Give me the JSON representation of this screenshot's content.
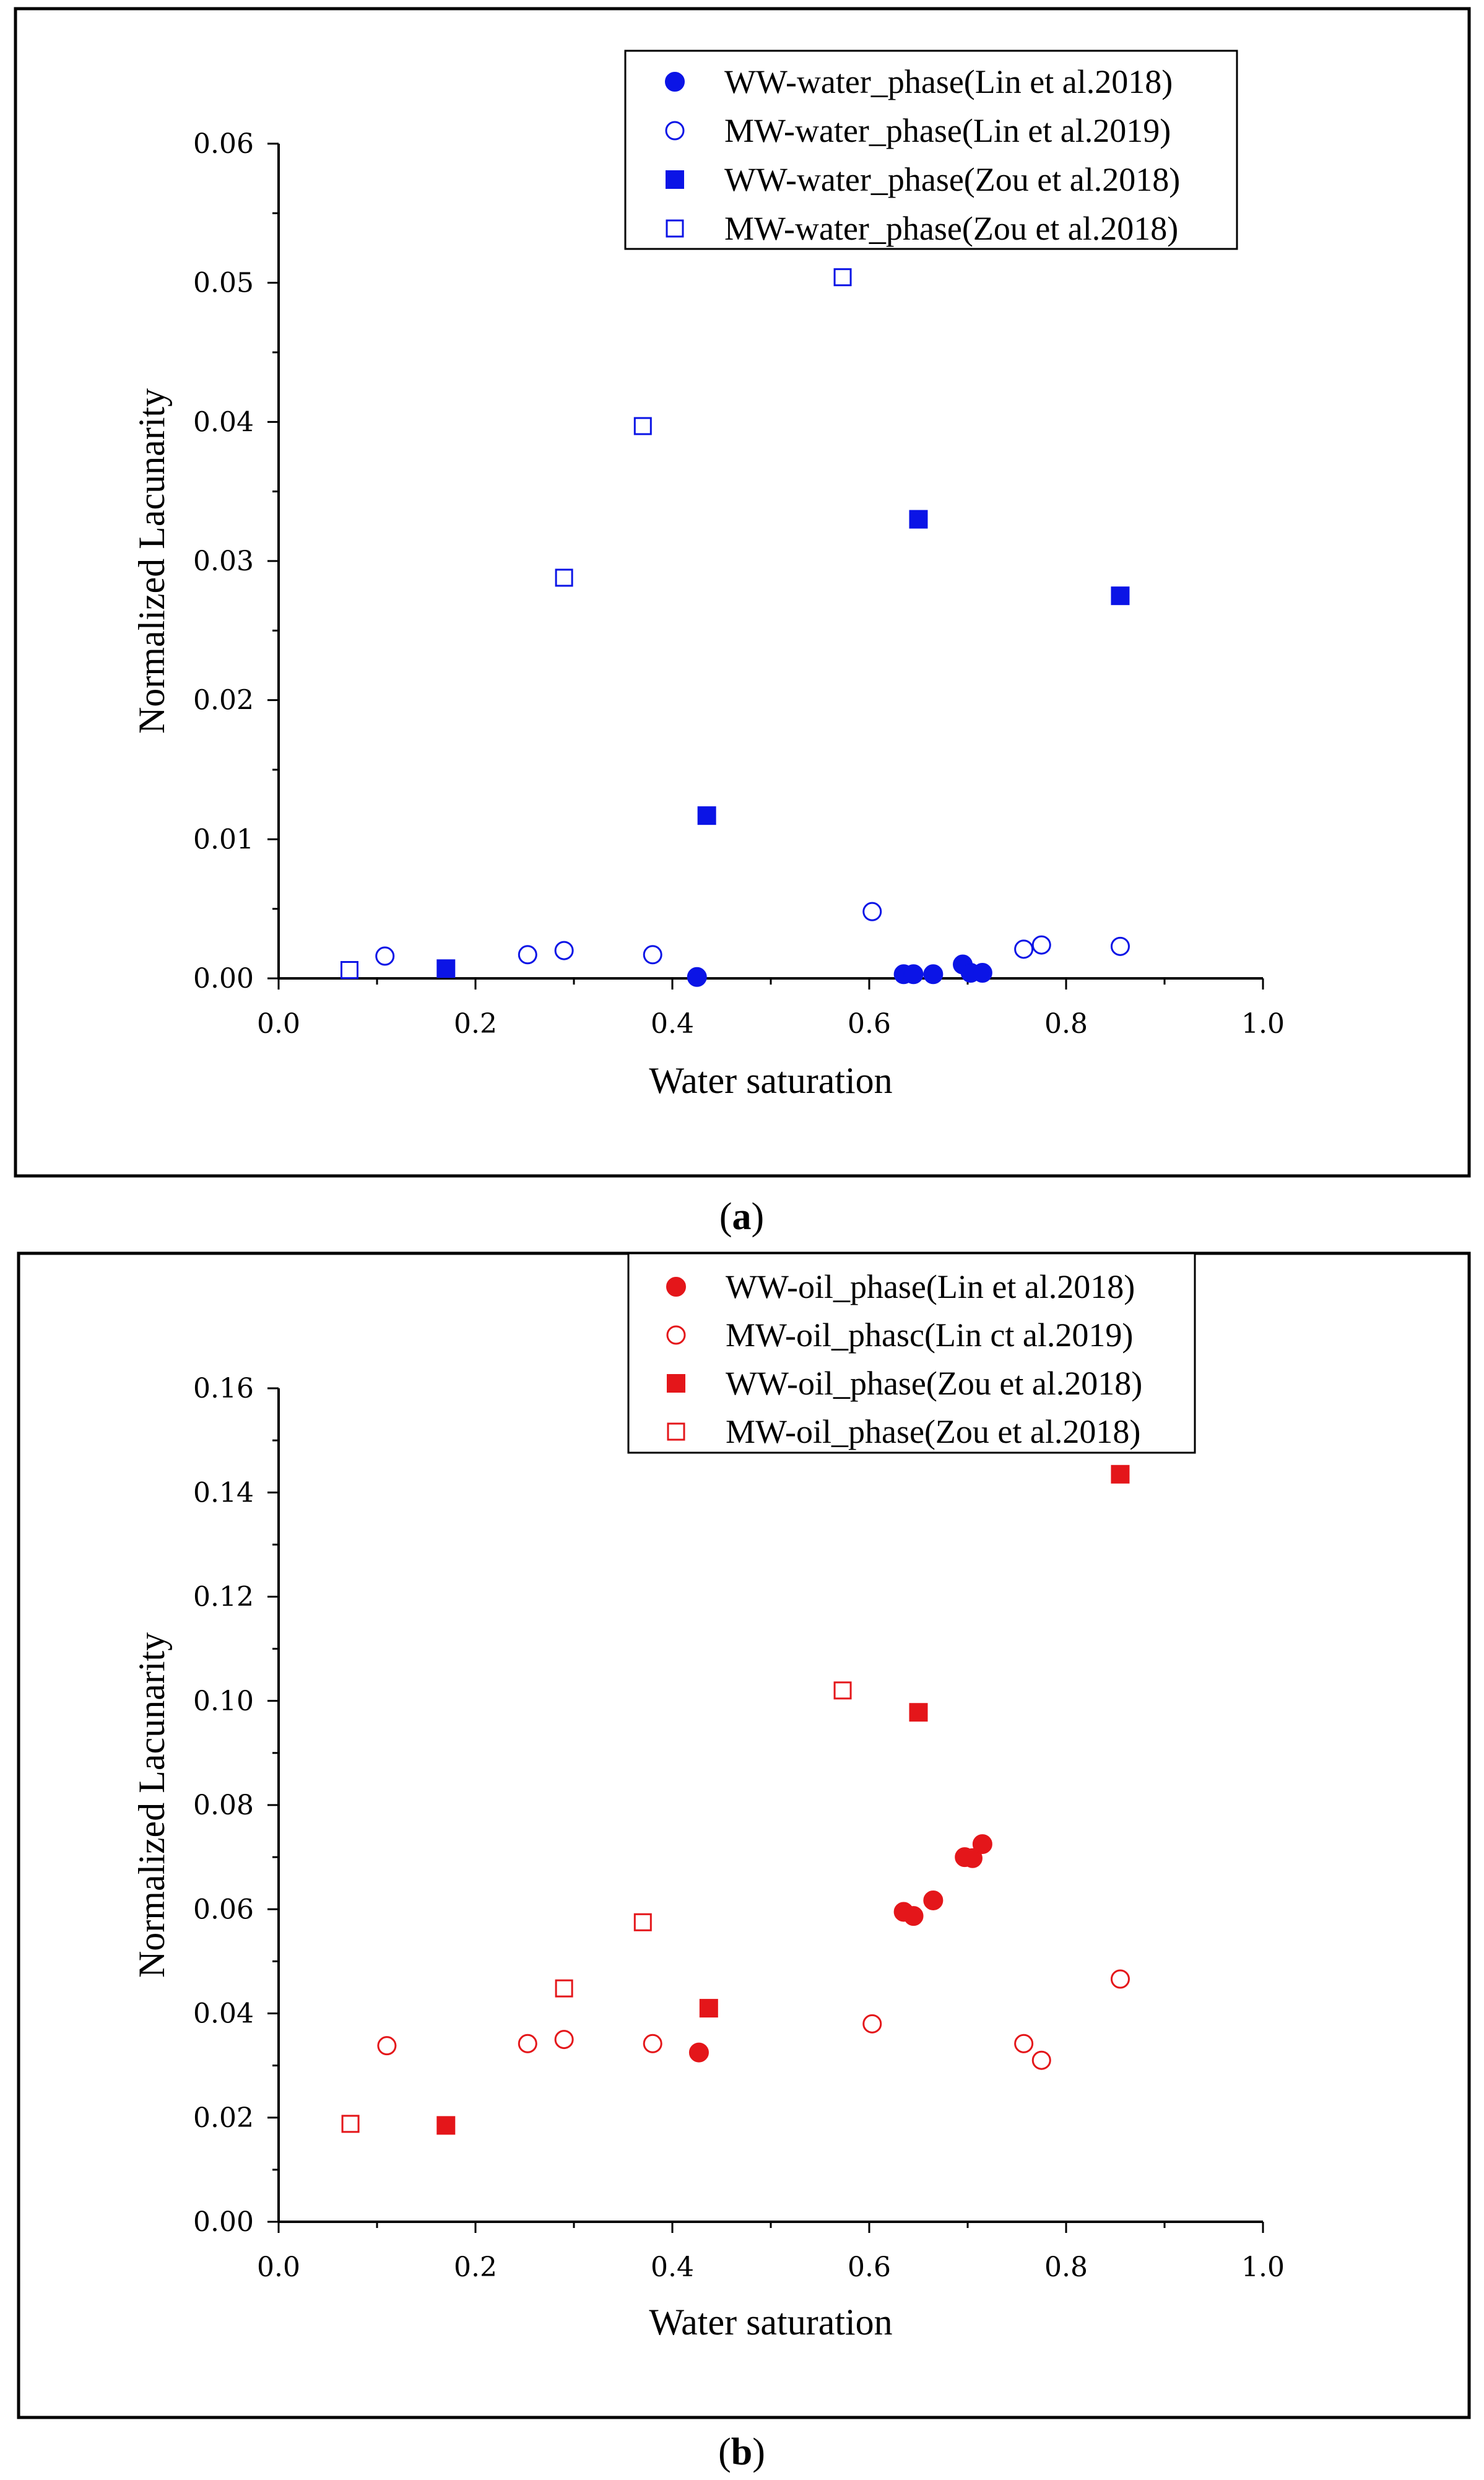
{
  "chart_data": [
    {
      "type": "scatter",
      "panel": "a",
      "caption": {
        "open": "(",
        "letter": "a",
        "close": ")"
      },
      "xlabel": "Water saturation",
      "ylabel": "Normalized Lacunarity",
      "xlim": [
        0,
        1.0
      ],
      "ylim": [
        0,
        0.06
      ],
      "x_ticks": [
        0.0,
        0.2,
        0.4,
        0.6,
        0.8,
        1.0
      ],
      "x_tick_labels": [
        "0.0",
        "0.2",
        "0.4",
        "0.6",
        "0.8",
        "1.0"
      ],
      "y_ticks": [
        0.0,
        0.01,
        0.02,
        0.03,
        0.04,
        0.05,
        0.06
      ],
      "y_tick_labels": [
        "0.00",
        "0.01",
        "0.02",
        "0.03",
        "0.04",
        "0.05",
        "0.06"
      ],
      "legend_position": "top-right",
      "color": "#0b14e6",
      "series": [
        {
          "name": "WW-water_phase(Lin et al.2018)",
          "marker": "circle-filled",
          "points": [
            [
              0.425,
              0.0001
            ],
            [
              0.635,
              0.0003
            ],
            [
              0.645,
              0.0003
            ],
            [
              0.665,
              0.0003
            ],
            [
              0.695,
              0.001
            ],
            [
              0.703,
              0.0004
            ],
            [
              0.715,
              0.0004
            ]
          ]
        },
        {
          "name": "MW-water_phase(Lin et al.2019)",
          "marker": "circle-open",
          "points": [
            [
              0.108,
              0.0016
            ],
            [
              0.253,
              0.0017
            ],
            [
              0.29,
              0.002
            ],
            [
              0.38,
              0.0017
            ],
            [
              0.603,
              0.0048
            ],
            [
              0.757,
              0.0021
            ],
            [
              0.775,
              0.0024
            ],
            [
              0.855,
              0.0023
            ]
          ]
        },
        {
          "name": "WW-water_phase(Zou et al.2018)",
          "marker": "square-filled",
          "points": [
            [
              0.17,
              0.0007
            ],
            [
              0.435,
              0.0117
            ],
            [
              0.65,
              0.033
            ],
            [
              0.855,
              0.0275
            ]
          ]
        },
        {
          "name": "MW-water_phase(Zou et al.2018)",
          "marker": "square-open",
          "points": [
            [
              0.072,
              0.0006
            ],
            [
              0.29,
              0.0288
            ],
            [
              0.37,
              0.0397
            ],
            [
              0.573,
              0.0504
            ]
          ]
        }
      ]
    },
    {
      "type": "scatter",
      "panel": "b",
      "caption": {
        "open": "(",
        "letter": "b",
        "close": ")"
      },
      "xlabel": "Water saturation",
      "ylabel": "Normalized Lacunarity",
      "xlim": [
        0,
        1.0
      ],
      "ylim": [
        0,
        0.16
      ],
      "x_ticks": [
        0.0,
        0.2,
        0.4,
        0.6,
        0.8,
        1.0
      ],
      "x_tick_labels": [
        "0.0",
        "0.2",
        "0.4",
        "0.6",
        "0.8",
        "1.0"
      ],
      "y_ticks": [
        0.0,
        0.02,
        0.04,
        0.06,
        0.08,
        0.1,
        0.12,
        0.14,
        0.16
      ],
      "y_tick_labels": [
        "0.00",
        "0.02",
        "0.04",
        "0.06",
        "0.08",
        "0.10",
        "0.12",
        "0.14",
        "0.16"
      ],
      "legend_position": "top-right",
      "color": "#e4161a",
      "series": [
        {
          "name": "WW-oil_phase(Lin et al.2018)",
          "marker": "circle-filled",
          "points": [
            [
              0.427,
              0.0325
            ],
            [
              0.635,
              0.0595
            ],
            [
              0.645,
              0.0587
            ],
            [
              0.665,
              0.0617
            ],
            [
              0.697,
              0.07
            ],
            [
              0.705,
              0.0698
            ],
            [
              0.715,
              0.0725
            ]
          ]
        },
        {
          "name": "MW-oil_phasc(Lin ct al.2019)",
          "marker": "circle-open",
          "points": [
            [
              0.11,
              0.0338
            ],
            [
              0.253,
              0.0342
            ],
            [
              0.29,
              0.035
            ],
            [
              0.38,
              0.0342
            ],
            [
              0.603,
              0.038
            ],
            [
              0.757,
              0.0342
            ],
            [
              0.775,
              0.031
            ],
            [
              0.855,
              0.0466
            ]
          ]
        },
        {
          "name": "WW-oil_phase(Zou et al.2018)",
          "marker": "square-filled",
          "points": [
            [
              0.17,
              0.0185
            ],
            [
              0.437,
              0.041
            ],
            [
              0.65,
              0.0978
            ],
            [
              0.855,
              0.1435
            ]
          ]
        },
        {
          "name": "MW-oil_phase(Zou et al.2018)",
          "marker": "square-open",
          "points": [
            [
              0.073,
              0.0188
            ],
            [
              0.29,
              0.0448
            ],
            [
              0.37,
              0.0575
            ],
            [
              0.573,
              0.102
            ]
          ]
        }
      ]
    }
  ]
}
